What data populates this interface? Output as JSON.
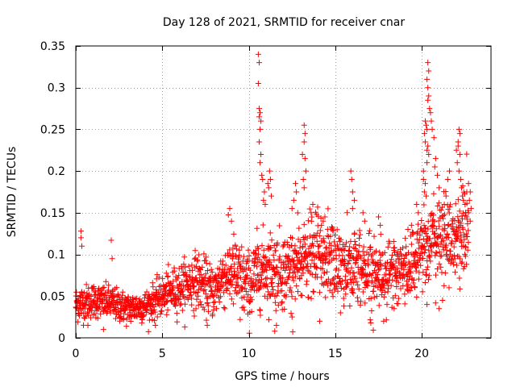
{
  "chart_data": {
    "type": "scatter",
    "title": "Day 128 of 2021, SRMTID for receiver cnar",
    "xlabel": "GPS time / hours",
    "ylabel": "SRMTID / TECUs",
    "xlim": [
      0,
      24
    ],
    "ylim": [
      0,
      0.35
    ],
    "xticks": [
      0,
      5,
      10,
      15,
      20
    ],
    "xtick_labels": [
      "0",
      "5",
      "10",
      "15",
      "20"
    ],
    "yticks": [
      0,
      0.05,
      0.1,
      0.15,
      0.2,
      0.25,
      0.3,
      0.35
    ],
    "ytick_labels": [
      "0",
      "0.05",
      "0.1",
      "0.15",
      "0.2",
      "0.25",
      "0.3",
      "0.35"
    ],
    "grid": true,
    "marker": "+",
    "color": "#ff0000",
    "series": [
      {
        "name": "SRMTID",
        "trend": [
          [
            0,
            0.04
          ],
          [
            1,
            0.045
          ],
          [
            2,
            0.042
          ],
          [
            3,
            0.035
          ],
          [
            4,
            0.038
          ],
          [
            5,
            0.05
          ],
          [
            6,
            0.06
          ],
          [
            7,
            0.07
          ],
          [
            7.5,
            0.062
          ],
          [
            8,
            0.055
          ],
          [
            8.5,
            0.075
          ],
          [
            9,
            0.08
          ],
          [
            9.5,
            0.07
          ],
          [
            10,
            0.06
          ],
          [
            10.5,
            0.08
          ],
          [
            11,
            0.085
          ],
          [
            12,
            0.08
          ],
          [
            13,
            0.09
          ],
          [
            14,
            0.1
          ],
          [
            15,
            0.09
          ],
          [
            16,
            0.085
          ],
          [
            17,
            0.08
          ],
          [
            18,
            0.075
          ],
          [
            19,
            0.08
          ],
          [
            19.5,
            0.09
          ],
          [
            20,
            0.11
          ],
          [
            21,
            0.12
          ],
          [
            22,
            0.12
          ],
          [
            22.7,
            0.13
          ]
        ],
        "spread": [
          [
            0,
            0.014
          ],
          [
            4,
            0.012
          ],
          [
            7,
            0.022
          ],
          [
            8,
            0.02
          ],
          [
            9,
            0.03
          ],
          [
            10,
            0.028
          ],
          [
            12,
            0.03
          ],
          [
            15,
            0.032
          ],
          [
            18,
            0.026
          ],
          [
            20,
            0.03
          ],
          [
            22.7,
            0.035
          ]
        ],
        "points": [
          [
            0.3,
            0.128
          ],
          [
            0.3,
            0.12
          ],
          [
            0.35,
            0.11
          ],
          [
            2.05,
            0.117
          ],
          [
            2.1,
            0.095
          ],
          [
            8.9,
            0.155
          ],
          [
            9.0,
            0.14
          ],
          [
            10.55,
            0.34
          ],
          [
            10.6,
            0.33
          ],
          [
            10.55,
            0.305
          ],
          [
            10.6,
            0.275
          ],
          [
            10.65,
            0.27
          ],
          [
            10.6,
            0.265
          ],
          [
            10.7,
            0.26
          ],
          [
            10.65,
            0.25
          ],
          [
            10.6,
            0.235
          ],
          [
            10.7,
            0.22
          ],
          [
            10.65,
            0.21
          ],
          [
            10.75,
            0.195
          ],
          [
            10.8,
            0.19
          ],
          [
            10.9,
            0.175
          ],
          [
            10.85,
            0.165
          ],
          [
            10.95,
            0.16
          ],
          [
            11.2,
            0.2
          ],
          [
            11.25,
            0.19
          ],
          [
            11.1,
            0.185
          ],
          [
            11.15,
            0.18
          ],
          [
            11.3,
            0.17
          ],
          [
            13.2,
            0.255
          ],
          [
            13.25,
            0.245
          ],
          [
            13.2,
            0.235
          ],
          [
            13.1,
            0.22
          ],
          [
            13.25,
            0.215
          ],
          [
            13.3,
            0.2
          ],
          [
            13.15,
            0.19
          ],
          [
            13.2,
            0.18
          ],
          [
            12.7,
            0.185
          ],
          [
            12.75,
            0.175
          ],
          [
            12.6,
            0.165
          ],
          [
            12.5,
            0.155
          ],
          [
            13.7,
            0.16
          ],
          [
            13.6,
            0.15
          ],
          [
            14.3,
            0.14
          ],
          [
            14.2,
            0.135
          ],
          [
            14.4,
            0.145
          ],
          [
            15.9,
            0.2
          ],
          [
            15.95,
            0.19
          ],
          [
            16.0,
            0.175
          ],
          [
            16.1,
            0.165
          ],
          [
            16.0,
            0.155
          ],
          [
            16.6,
            0.15
          ],
          [
            16.7,
            0.14
          ],
          [
            17.5,
            0.145
          ],
          [
            17.6,
            0.135
          ],
          [
            19.2,
            0.13
          ],
          [
            19.4,
            0.135
          ],
          [
            19.8,
            0.15
          ],
          [
            19.7,
            0.16
          ],
          [
            20.1,
            0.2
          ],
          [
            20.2,
            0.26
          ],
          [
            20.25,
            0.255
          ],
          [
            20.3,
            0.25
          ],
          [
            20.15,
            0.245
          ],
          [
            20.2,
            0.235
          ],
          [
            20.35,
            0.23
          ],
          [
            20.3,
            0.225
          ],
          [
            20.4,
            0.22
          ],
          [
            20.3,
            0.21
          ],
          [
            20.1,
            0.19
          ],
          [
            20.2,
            0.185
          ],
          [
            20.15,
            0.175
          ],
          [
            20.25,
            0.17
          ],
          [
            20.35,
            0.33
          ],
          [
            20.4,
            0.32
          ],
          [
            20.3,
            0.31
          ],
          [
            20.35,
            0.3
          ],
          [
            20.4,
            0.29
          ],
          [
            20.35,
            0.285
          ],
          [
            20.45,
            0.275
          ],
          [
            20.5,
            0.27
          ],
          [
            20.55,
            0.26
          ],
          [
            20.6,
            0.25
          ],
          [
            20.7,
            0.24
          ],
          [
            20.8,
            0.215
          ],
          [
            20.75,
            0.205
          ],
          [
            20.9,
            0.195
          ],
          [
            21.0,
            0.18
          ],
          [
            21.3,
            0.16
          ],
          [
            21.4,
            0.17
          ],
          [
            21.5,
            0.19
          ],
          [
            21.6,
            0.2
          ],
          [
            22.0,
            0.225
          ],
          [
            22.1,
            0.235
          ],
          [
            22.15,
            0.25
          ],
          [
            22.2,
            0.245
          ],
          [
            22.1,
            0.23
          ],
          [
            22.2,
            0.22
          ],
          [
            22.05,
            0.21
          ],
          [
            22.15,
            0.2
          ],
          [
            22.25,
            0.19
          ],
          [
            22.3,
            0.18
          ],
          [
            22.35,
            0.17
          ],
          [
            22.4,
            0.165
          ],
          [
            22.5,
            0.16
          ],
          [
            22.6,
            0.175
          ],
          [
            22.7,
            0.185
          ],
          [
            22.8,
            0.175
          ],
          [
            22.75,
            0.165
          ],
          [
            22.85,
            0.155
          ],
          [
            22.7,
            0.15
          ],
          [
            22.6,
            0.145
          ],
          [
            22.8,
            0.14
          ],
          [
            21.0,
            0.035
          ],
          [
            21.2,
            0.045
          ],
          [
            0.7,
            0.015
          ],
          [
            1.6,
            0.01
          ],
          [
            4.6,
            0.015
          ],
          [
            7.6,
            0.015
          ],
          [
            9.5,
            0.022
          ],
          [
            11.5,
            0.008
          ],
          [
            11.6,
            0.015
          ],
          [
            12.5,
            0.025
          ],
          [
            14.1,
            0.02
          ],
          [
            15.3,
            0.03
          ],
          [
            18.4,
            0.035
          ],
          [
            20.3,
            0.04
          ]
        ]
      }
    ]
  }
}
